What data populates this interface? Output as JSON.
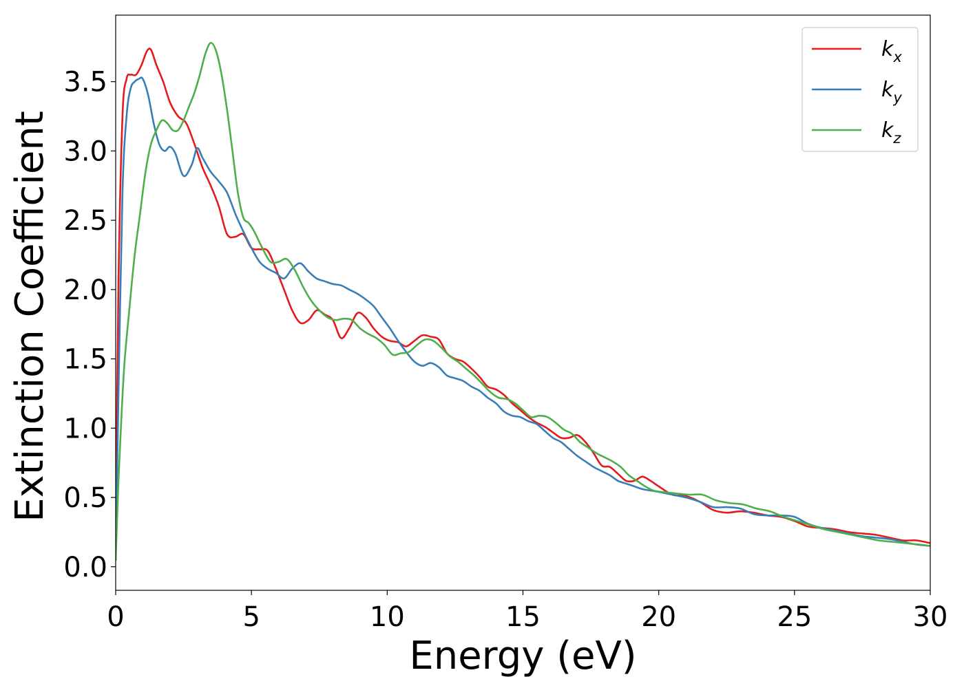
{
  "chart_data": {
    "type": "line",
    "title": "",
    "xlabel": "Energy (eV)",
    "ylabel": "Extinction Coefficient",
    "xlim": [
      0,
      30
    ],
    "ylim": [
      -0.17,
      3.98
    ],
    "xticks": [
      0,
      5,
      10,
      15,
      20,
      25,
      30
    ],
    "xtick_labels": [
      "0",
      "5",
      "10",
      "15",
      "20",
      "25",
      "30"
    ],
    "yticks": [
      0.0,
      0.5,
      1.0,
      1.5,
      2.0,
      2.5,
      3.0,
      3.5
    ],
    "ytick_labels": [
      "0.0",
      "0.5",
      "1.0",
      "1.5",
      "2.0",
      "2.5",
      "3.0",
      "3.5"
    ],
    "grid": false,
    "legend_position": "top-right",
    "series": [
      {
        "name": "k_x",
        "label_base": "k",
        "label_sub": "x",
        "color": "#e41a1c",
        "x": [
          0,
          0.1,
          0.25,
          0.4,
          0.55,
          0.75,
          0.95,
          1.15,
          1.3,
          1.5,
          1.75,
          2.0,
          2.3,
          2.6,
          2.9,
          3.2,
          3.5,
          3.8,
          4.1,
          4.4,
          4.7,
          5.0,
          5.3,
          5.6,
          5.9,
          6.2,
          6.5,
          6.8,
          7.1,
          7.4,
          7.7,
          8.0,
          8.3,
          8.6,
          8.9,
          9.2,
          9.5,
          9.8,
          10.1,
          10.4,
          10.7,
          11.0,
          11.3,
          11.6,
          11.9,
          12.2,
          12.5,
          12.8,
          13.1,
          13.4,
          13.7,
          14.0,
          14.3,
          14.6,
          14.9,
          15.2,
          15.5,
          15.8,
          16.1,
          16.4,
          16.7,
          17.0,
          17.3,
          17.6,
          17.9,
          18.2,
          18.5,
          18.8,
          19.1,
          19.4,
          19.7,
          20.0,
          20.5,
          21.0,
          21.5,
          22.0,
          22.5,
          23.0,
          23.5,
          24.0,
          24.5,
          25.0,
          25.5,
          26.0,
          26.5,
          27.0,
          27.5,
          28.0,
          28.5,
          29.0,
          29.5,
          30.0
        ],
        "y": [
          0.05,
          2.0,
          3.25,
          3.52,
          3.55,
          3.55,
          3.62,
          3.72,
          3.73,
          3.62,
          3.5,
          3.35,
          3.25,
          3.2,
          3.05,
          2.88,
          2.75,
          2.6,
          2.4,
          2.38,
          2.4,
          2.3,
          2.29,
          2.28,
          2.15,
          2.0,
          1.85,
          1.76,
          1.78,
          1.85,
          1.82,
          1.78,
          1.65,
          1.72,
          1.83,
          1.8,
          1.72,
          1.66,
          1.63,
          1.62,
          1.59,
          1.63,
          1.67,
          1.66,
          1.64,
          1.54,
          1.5,
          1.48,
          1.43,
          1.37,
          1.3,
          1.28,
          1.24,
          1.18,
          1.13,
          1.08,
          1.04,
          1.01,
          0.97,
          0.93,
          0.93,
          0.95,
          0.9,
          0.82,
          0.73,
          0.72,
          0.67,
          0.62,
          0.62,
          0.65,
          0.62,
          0.58,
          0.52,
          0.51,
          0.47,
          0.41,
          0.39,
          0.4,
          0.39,
          0.37,
          0.36,
          0.33,
          0.29,
          0.28,
          0.27,
          0.25,
          0.24,
          0.23,
          0.21,
          0.19,
          0.19,
          0.17
        ]
      },
      {
        "name": "k_y",
        "label_base": "k",
        "label_sub": "y",
        "color": "#377eb8",
        "x": [
          0,
          0.1,
          0.25,
          0.4,
          0.55,
          0.7,
          0.85,
          1.0,
          1.2,
          1.4,
          1.6,
          1.8,
          2.0,
          2.2,
          2.5,
          2.8,
          3.0,
          3.2,
          3.5,
          3.8,
          4.1,
          4.4,
          4.7,
          5.0,
          5.3,
          5.6,
          5.9,
          6.2,
          6.5,
          6.8,
          7.1,
          7.4,
          7.7,
          8.0,
          8.3,
          8.6,
          8.9,
          9.2,
          9.5,
          9.8,
          10.1,
          10.4,
          10.7,
          11.0,
          11.3,
          11.6,
          11.9,
          12.2,
          12.5,
          12.8,
          13.1,
          13.4,
          13.7,
          14.0,
          14.3,
          14.6,
          14.9,
          15.2,
          15.5,
          15.8,
          16.1,
          16.4,
          16.7,
          17.0,
          17.3,
          17.6,
          17.9,
          18.2,
          18.5,
          18.8,
          19.1,
          19.4,
          19.7,
          20.0,
          20.5,
          21.0,
          21.5,
          22.0,
          22.5,
          23.0,
          23.5,
          24.0,
          24.5,
          25.0,
          25.5,
          26.0,
          26.5,
          27.0,
          27.5,
          28.0,
          28.5,
          29.0,
          29.5,
          30.0
        ],
        "y": [
          0.05,
          1.2,
          2.7,
          3.25,
          3.45,
          3.5,
          3.52,
          3.52,
          3.4,
          3.2,
          3.05,
          3.0,
          3.03,
          2.98,
          2.82,
          2.9,
          3.02,
          2.95,
          2.85,
          2.78,
          2.7,
          2.55,
          2.42,
          2.3,
          2.2,
          2.15,
          2.12,
          2.08,
          2.15,
          2.19,
          2.13,
          2.08,
          2.06,
          2.04,
          2.03,
          2.0,
          1.97,
          1.93,
          1.88,
          1.8,
          1.72,
          1.63,
          1.55,
          1.48,
          1.45,
          1.47,
          1.44,
          1.38,
          1.36,
          1.34,
          1.3,
          1.27,
          1.22,
          1.18,
          1.12,
          1.09,
          1.08,
          1.05,
          1.03,
          0.98,
          0.93,
          0.9,
          0.85,
          0.8,
          0.76,
          0.72,
          0.69,
          0.66,
          0.62,
          0.6,
          0.58,
          0.56,
          0.55,
          0.54,
          0.52,
          0.5,
          0.47,
          0.43,
          0.43,
          0.42,
          0.38,
          0.37,
          0.37,
          0.36,
          0.31,
          0.28,
          0.26,
          0.24,
          0.22,
          0.21,
          0.2,
          0.18,
          0.16,
          0.15
        ]
      },
      {
        "name": "k_z",
        "label_base": "k",
        "label_sub": "z",
        "color": "#4daf4a",
        "x": [
          0,
          0.1,
          0.3,
          0.5,
          0.7,
          0.9,
          1.1,
          1.3,
          1.5,
          1.7,
          1.9,
          2.1,
          2.3,
          2.5,
          2.7,
          2.9,
          3.1,
          3.3,
          3.5,
          3.7,
          3.9,
          4.1,
          4.3,
          4.5,
          4.7,
          4.9,
          5.1,
          5.4,
          5.7,
          6.0,
          6.3,
          6.6,
          6.9,
          7.2,
          7.5,
          7.8,
          8.1,
          8.4,
          8.7,
          9.0,
          9.3,
          9.6,
          9.9,
          10.2,
          10.5,
          10.8,
          11.1,
          11.4,
          11.7,
          12.0,
          12.3,
          12.6,
          12.9,
          13.2,
          13.5,
          13.8,
          14.1,
          14.4,
          14.7,
          15.0,
          15.3,
          15.6,
          15.9,
          16.2,
          16.5,
          16.8,
          17.1,
          17.4,
          17.7,
          18.0,
          18.3,
          18.6,
          18.9,
          19.2,
          19.5,
          19.8,
          20.1,
          20.6,
          21.1,
          21.6,
          22.1,
          22.6,
          23.1,
          23.6,
          24.1,
          24.6,
          25.1,
          25.6,
          26.1,
          26.6,
          27.1,
          27.6,
          28.1,
          28.6,
          29.1,
          29.6,
          30.0
        ],
        "y": [
          0.05,
          0.6,
          1.4,
          1.85,
          2.25,
          2.55,
          2.85,
          3.05,
          3.15,
          3.22,
          3.2,
          3.15,
          3.15,
          3.22,
          3.32,
          3.42,
          3.55,
          3.7,
          3.78,
          3.72,
          3.55,
          3.3,
          3.0,
          2.7,
          2.52,
          2.48,
          2.42,
          2.3,
          2.2,
          2.2,
          2.22,
          2.14,
          2.02,
          1.92,
          1.85,
          1.8,
          1.78,
          1.79,
          1.78,
          1.72,
          1.68,
          1.65,
          1.6,
          1.53,
          1.54,
          1.55,
          1.6,
          1.64,
          1.63,
          1.58,
          1.52,
          1.48,
          1.43,
          1.38,
          1.32,
          1.26,
          1.22,
          1.21,
          1.18,
          1.13,
          1.08,
          1.09,
          1.08,
          1.04,
          0.99,
          0.96,
          0.9,
          0.86,
          0.82,
          0.79,
          0.76,
          0.72,
          0.66,
          0.62,
          0.58,
          0.55,
          0.54,
          0.53,
          0.52,
          0.52,
          0.48,
          0.46,
          0.45,
          0.42,
          0.4,
          0.36,
          0.33,
          0.3,
          0.27,
          0.25,
          0.23,
          0.21,
          0.19,
          0.18,
          0.17,
          0.16,
          0.15
        ]
      }
    ]
  }
}
